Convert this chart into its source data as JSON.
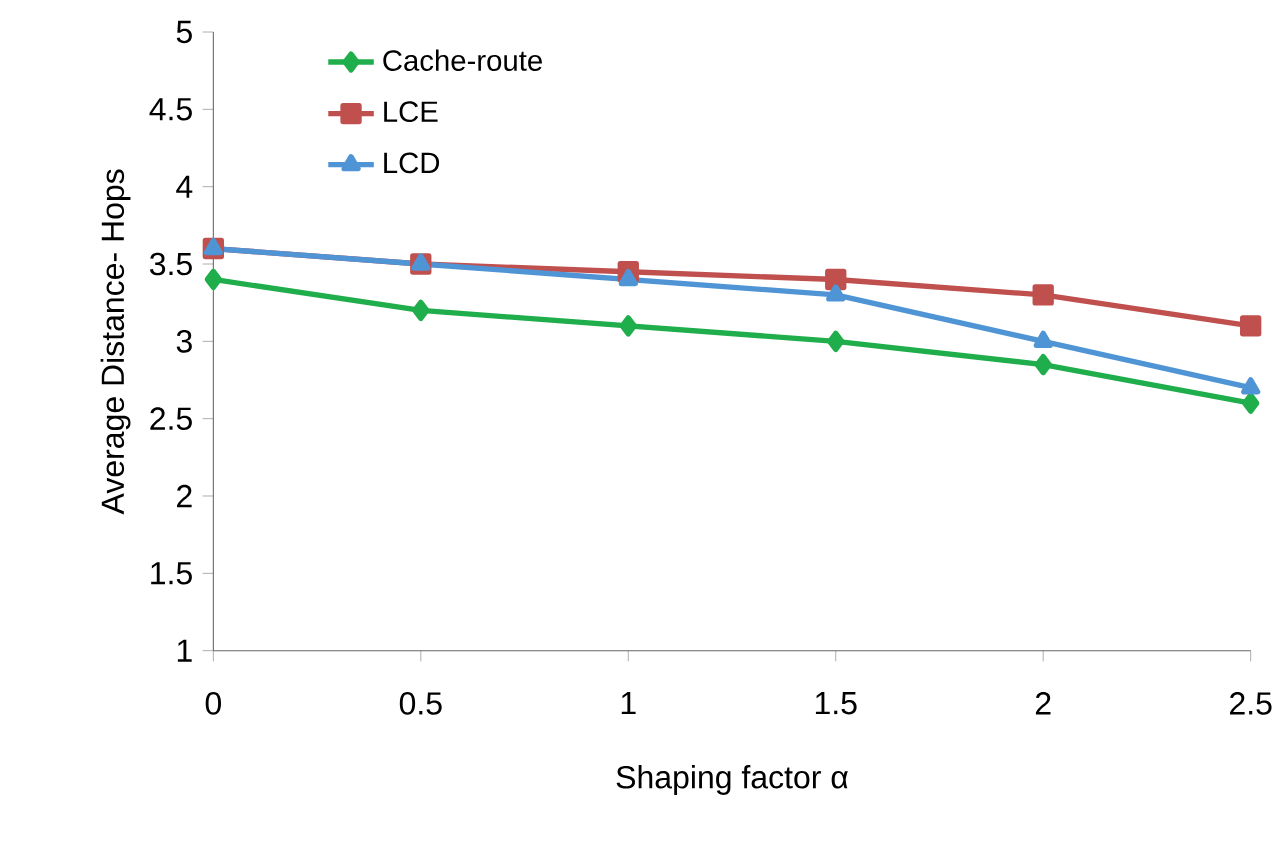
{
  "chart_data": {
    "type": "line",
    "xlabel": "Shaping factor α",
    "ylabel": "Average Distance- Hops",
    "x": [
      0,
      0.5,
      1,
      1.5,
      2,
      2.5
    ],
    "series": [
      {
        "name": "Cache-route",
        "color": "#1fae4b",
        "marker": "diamond",
        "values": [
          3.4,
          3.2,
          3.1,
          3.0,
          2.85,
          2.6
        ]
      },
      {
        "name": "LCE",
        "color": "#c0504d",
        "marker": "square",
        "values": [
          3.6,
          3.5,
          3.45,
          3.4,
          3.3,
          3.1
        ]
      },
      {
        "name": "LCD",
        "color": "#4f94d4",
        "marker": "triangle",
        "values": [
          3.6,
          3.5,
          3.4,
          3.3,
          3.0,
          2.7
        ]
      }
    ],
    "xlim": [
      0,
      2.5
    ],
    "xticks": [
      0,
      0.5,
      1,
      1.5,
      2,
      2.5
    ],
    "ylim": [
      1,
      5
    ],
    "yticks": [
      1,
      1.5,
      2,
      2.5,
      3,
      3.5,
      4,
      4.5,
      5
    ],
    "grid": false,
    "legend": "top left",
    "line_style": "solid"
  }
}
